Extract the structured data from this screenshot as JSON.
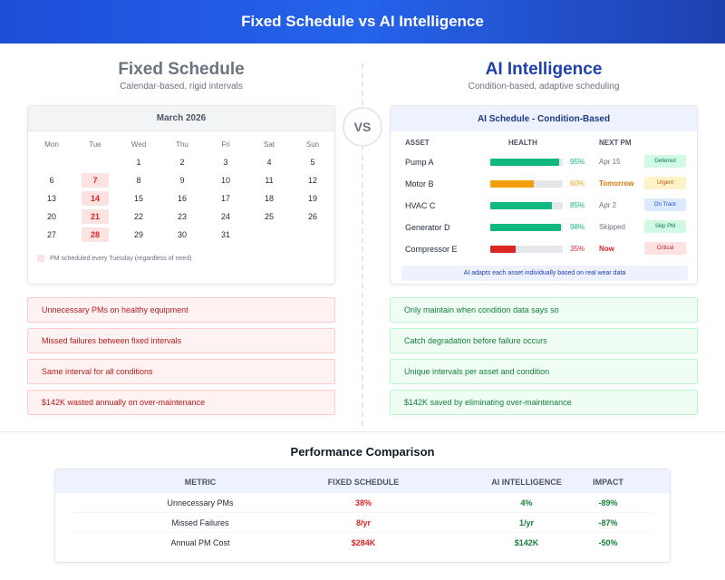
{
  "header": {
    "title": "Fixed Schedule vs AI Intelligence"
  },
  "fixed": {
    "title": "Fixed Schedule",
    "subtitle": "Calendar-based, rigid intervals",
    "calendar": {
      "month": "March 2026",
      "dow": [
        "Mon",
        "Tue",
        "Wed",
        "Thu",
        "Fri",
        "Sat",
        "Sun"
      ],
      "weeks": [
        [
          "",
          "",
          "1",
          "2",
          "3",
          "4",
          "5"
        ],
        [
          "6",
          "7",
          "8",
          "9",
          "10",
          "11",
          "12"
        ],
        [
          "13",
          "14",
          "15",
          "16",
          "17",
          "18",
          "19"
        ],
        [
          "20",
          "21",
          "22",
          "23",
          "24",
          "25",
          "26"
        ],
        [
          "27",
          "28",
          "29",
          "30",
          "31",
          "",
          ""
        ]
      ],
      "legend": "PM scheduled every Tuesday (regardless of need)"
    },
    "points": [
      "Unnecessary PMs on healthy equipment",
      "Missed failures between fixed intervals",
      "Same interval for all conditions",
      "$142K wasted annually on over-maintenance"
    ]
  },
  "vs": "VS",
  "ai": {
    "title": "AI Intelligence",
    "subtitle": "Condition-based, adaptive scheduling",
    "schedule": {
      "title": "AI Schedule - Condition-Based",
      "columns": {
        "asset": "ASSET",
        "health": "HEALTH",
        "next": "NEXT PM"
      },
      "rows": [
        {
          "asset": "Pump A",
          "health": 0.95,
          "pct": "95%",
          "next": "Apr 15",
          "badge": "Deferred",
          "bar": "#10b981",
          "pctColor": "#10b981",
          "nextColor": "#6b7280",
          "badgeBg": "#d1fae5",
          "badgeFg": "#047857"
        },
        {
          "asset": "Motor B",
          "health": 0.6,
          "pct": "60%",
          "next": "Tomorrow",
          "badge": "Urgent",
          "bar": "#f59e0b",
          "pctColor": "#f59e0b",
          "nextColor": "#d97706",
          "badgeBg": "#fef3c7",
          "badgeFg": "#b45309"
        },
        {
          "asset": "HVAC C",
          "health": 0.85,
          "pct": "85%",
          "next": "Apr 2",
          "badge": "On Track",
          "bar": "#10b981",
          "pctColor": "#10b981",
          "nextColor": "#6b7280",
          "badgeBg": "#dbeafe",
          "badgeFg": "#1d4ed8"
        },
        {
          "asset": "Generator D",
          "health": 0.98,
          "pct": "98%",
          "next": "Skipped",
          "badge": "Skip PM",
          "bar": "#10b981",
          "pctColor": "#10b981",
          "nextColor": "#6b7280",
          "badgeBg": "#d1fae5",
          "badgeFg": "#047857"
        },
        {
          "asset": "Compressor E",
          "health": 0.35,
          "pct": "35%",
          "next": "Now",
          "badge": "Critical",
          "bar": "#dc2626",
          "pctColor": "#dc2626",
          "nextColor": "#dc2626",
          "badgeBg": "#fee2e2",
          "badgeFg": "#b91c1c"
        }
      ],
      "footer": "AI adapts each asset individually based on real wear data"
    },
    "points": [
      "Only maintain when condition data says so",
      "Catch degradation before failure occurs",
      "Unique intervals per asset and condition",
      "$142K saved by eliminating over-maintenance"
    ]
  },
  "performance": {
    "title": "Performance Comparison",
    "headers": [
      "METRIC",
      "FIXED SCHEDULE",
      "AI INTELLIGENCE",
      "IMPACT"
    ],
    "rows": [
      [
        "Unnecessary PMs",
        "38%",
        "4%",
        "-89%"
      ],
      [
        "Missed Failures",
        "8/yr",
        "1/yr",
        "-87%"
      ],
      [
        "Annual PM Cost",
        "$284K",
        "$142K",
        "-50%"
      ]
    ]
  }
}
